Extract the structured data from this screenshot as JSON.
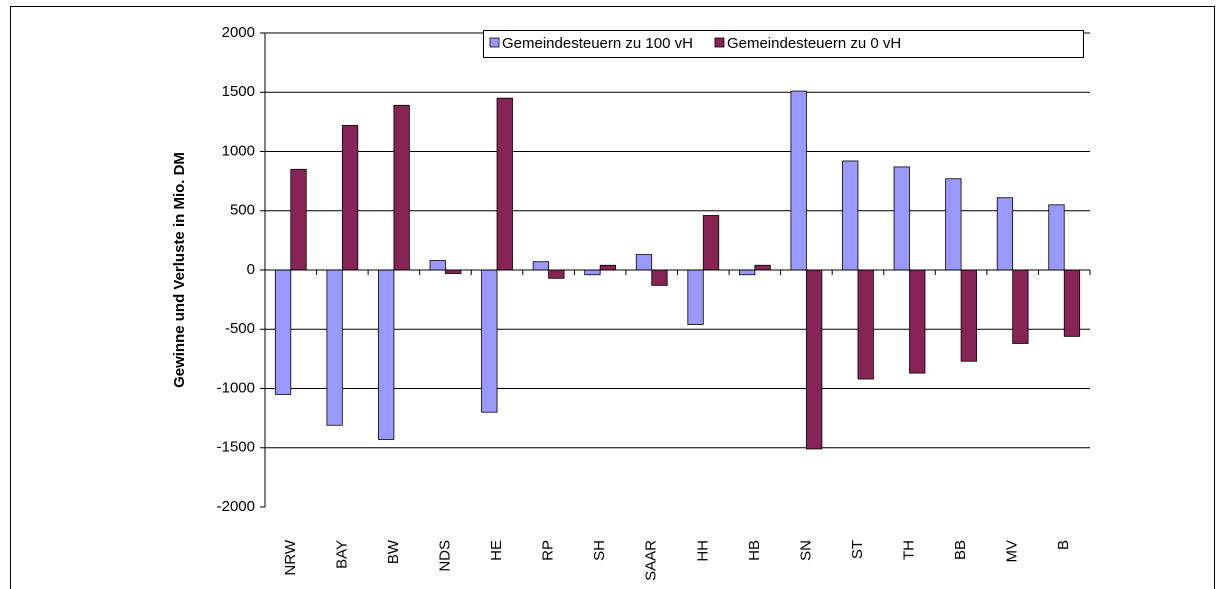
{
  "chart_data": {
    "type": "bar",
    "y_label": "Gewinne und Verluste in Mio. DM",
    "categories": [
      "NRW",
      "BAY",
      "BW",
      "NDS",
      "HE",
      "RP",
      "SH",
      "SAAR",
      "HH",
      "HB",
      "SN",
      "ST",
      "TH",
      "BB",
      "MV",
      "B"
    ],
    "series": [
      {
        "name": "Gemeindesteuern zu 100 vH",
        "color": "#9999ff",
        "values": [
          -1050,
          -1310,
          -1430,
          80,
          -1200,
          70,
          -40,
          130,
          -460,
          -40,
          1510,
          920,
          870,
          770,
          610,
          550
        ]
      },
      {
        "name": "Gemeindesteuern zu 0 vH",
        "color": "#862455",
        "values": [
          850,
          1220,
          1390,
          -30,
          1450,
          -70,
          40,
          -130,
          460,
          40,
          -1510,
          -920,
          -870,
          -770,
          -620,
          -560
        ]
      }
    ],
    "ylim": [
      -2000,
      2000
    ],
    "yticks": [
      -2000,
      -1500,
      -1000,
      -500,
      0,
      500,
      1000,
      1500,
      2000
    ],
    "grid": true,
    "legend": "top-right"
  }
}
